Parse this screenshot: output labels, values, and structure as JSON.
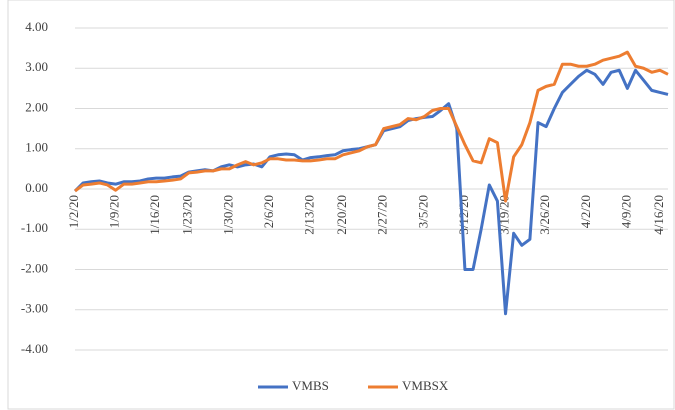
{
  "chart_data": {
    "type": "line",
    "categories": [
      "1/2/20",
      null,
      null,
      null,
      null,
      "1/9/20",
      null,
      null,
      null,
      null,
      "1/16/20",
      null,
      null,
      null,
      "1/23/20",
      null,
      null,
      null,
      null,
      "1/30/20",
      null,
      null,
      null,
      null,
      "2/6/20",
      null,
      null,
      null,
      null,
      "2/13/20",
      null,
      null,
      null,
      "2/20/20",
      null,
      null,
      null,
      null,
      "2/27/20",
      null,
      null,
      null,
      null,
      "3/5/20",
      null,
      null,
      null,
      null,
      "3/12/20",
      null,
      null,
      null,
      null,
      "3/19/20",
      null,
      null,
      null,
      null,
      "3/26/20",
      null,
      null,
      null,
      null,
      "4/2/20",
      null,
      null,
      null,
      null,
      "4/9/20",
      null,
      null,
      null,
      "4/16/20",
      null
    ],
    "series": [
      {
        "name": "VMBS",
        "color": "#4472c4",
        "values": [
          -0.05,
          0.15,
          0.18,
          0.2,
          0.15,
          0.12,
          0.18,
          0.18,
          0.2,
          0.25,
          0.27,
          0.27,
          0.3,
          0.32,
          0.42,
          0.45,
          0.48,
          0.45,
          0.55,
          0.6,
          0.55,
          0.6,
          0.62,
          0.55,
          0.8,
          0.85,
          0.87,
          0.85,
          0.72,
          0.78,
          0.8,
          0.83,
          0.85,
          0.95,
          0.98,
          1.0,
          1.05,
          1.1,
          1.45,
          1.5,
          1.55,
          1.7,
          1.75,
          1.78,
          1.8,
          1.95,
          2.12,
          1.5,
          -2.0,
          -2.0,
          -1.0,
          0.1,
          -0.3,
          -3.1,
          -1.1,
          -1.4,
          -1.25,
          1.65,
          1.55,
          2.0,
          2.4,
          2.6,
          2.8,
          2.95,
          2.85,
          2.6,
          2.9,
          2.95,
          2.5,
          2.95,
          2.7,
          2.45,
          2.4,
          2.35
        ]
      },
      {
        "name": "VMBSX",
        "color": "#ed7d31",
        "values": [
          -0.05,
          0.1,
          0.12,
          0.15,
          0.1,
          -0.03,
          0.12,
          0.12,
          0.15,
          0.18,
          0.18,
          0.2,
          0.22,
          0.25,
          0.4,
          0.42,
          0.45,
          0.45,
          0.5,
          0.5,
          0.6,
          0.68,
          0.6,
          0.65,
          0.75,
          0.75,
          0.72,
          0.72,
          0.7,
          0.7,
          0.72,
          0.75,
          0.75,
          0.85,
          0.9,
          0.95,
          1.05,
          1.1,
          1.5,
          1.55,
          1.6,
          1.75,
          1.72,
          1.8,
          1.95,
          2.0,
          2.0,
          1.55,
          1.1,
          0.7,
          0.65,
          1.25,
          1.15,
          -0.3,
          0.8,
          1.1,
          1.65,
          2.45,
          2.55,
          2.6,
          3.1,
          3.1,
          3.05,
          3.05,
          3.1,
          3.2,
          3.25,
          3.3,
          3.4,
          3.05,
          3.0,
          2.9,
          2.95,
          2.85
        ]
      }
    ],
    "ylim": [
      -4,
      4
    ],
    "yticks": [
      {
        "value": -4,
        "label": "-4.00"
      },
      {
        "value": -3,
        "label": "-3.00"
      },
      {
        "value": -2,
        "label": "-2.00"
      },
      {
        "value": -1,
        "label": "-1.00"
      },
      {
        "value": 0,
        "label": "0.00"
      },
      {
        "value": 1,
        "label": "1.00"
      },
      {
        "value": 2,
        "label": "2.00"
      },
      {
        "value": 3,
        "label": "3.00"
      },
      {
        "value": 4,
        "label": "4.00"
      }
    ],
    "grid": true,
    "legend": "bottom"
  }
}
